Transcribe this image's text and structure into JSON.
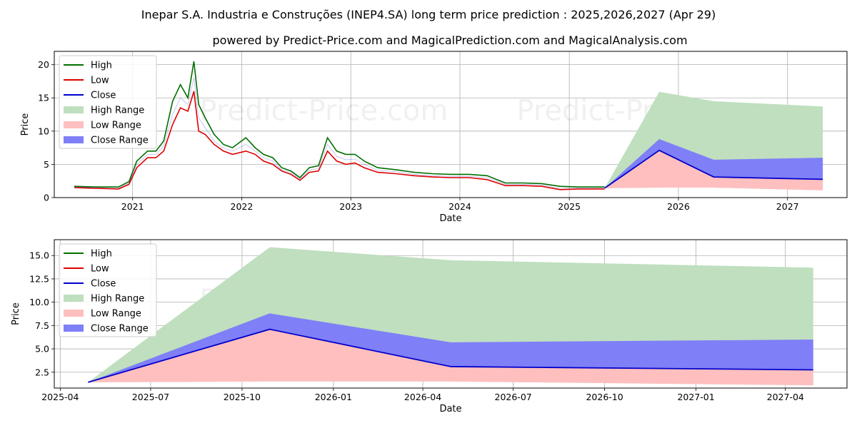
{
  "title": "Inepar S.A. Industria e Construções (INEP4.SA) long term price prediction : 2025,2026,2027 (Apr 29)",
  "subtitle": "powered by Predict-Price.com and MagicalPrediction.com and MagicalAnalysis.com",
  "watermark": "Predict-Price.com",
  "colors": {
    "high": "#007000",
    "low": "#dd0000",
    "close": "#0000cc",
    "high_range": "#bfdfbf",
    "low_range": "#ffbfbf",
    "close_range": "#7f7ff7"
  },
  "legend": {
    "placement": "top-left",
    "entries": [
      "High",
      "Low",
      "Close",
      "High Range",
      "Low Range",
      "Close Range"
    ]
  },
  "chart_data": [
    {
      "type": "line",
      "xlabel": "Date",
      "ylabel": "Price",
      "xlim": [
        "2020-04-14",
        "2027-07-19"
      ],
      "ylim": [
        0,
        22
      ],
      "grid": true,
      "x_ticks": [
        "2021",
        "2022",
        "2023",
        "2024",
        "2025",
        "2026",
        "2027"
      ],
      "x_tick_dates": [
        "2021-01-01",
        "2022-01-01",
        "2023-01-01",
        "2024-01-01",
        "2025-01-01",
        "2026-01-01",
        "2027-01-01"
      ],
      "y_ticks": [
        0,
        5,
        10,
        15,
        20
      ],
      "history": {
        "dates": [
          "2020-06-20",
          "2020-09-01",
          "2020-11-15",
          "2020-12-20",
          "2021-01-15",
          "2021-02-20",
          "2021-03-20",
          "2021-04-15",
          "2021-05-15",
          "2021-06-10",
          "2021-07-05",
          "2021-07-25",
          "2021-08-10",
          "2021-09-01",
          "2021-10-01",
          "2021-11-01",
          "2021-12-01",
          "2022-01-15",
          "2022-02-15",
          "2022-03-15",
          "2022-04-15",
          "2022-05-15",
          "2022-06-15",
          "2022-07-15",
          "2022-08-15",
          "2022-09-15",
          "2022-10-15",
          "2022-11-15",
          "2022-12-15",
          "2023-01-15",
          "2023-02-15",
          "2023-04-01",
          "2023-06-01",
          "2023-08-01",
          "2023-10-01",
          "2023-12-01",
          "2024-02-01",
          "2024-04-01",
          "2024-06-01",
          "2024-08-01",
          "2024-10-01",
          "2024-12-01",
          "2025-02-01",
          "2025-04-29"
        ],
        "high": [
          1.7,
          1.6,
          1.6,
          2.4,
          5.5,
          7.0,
          7.0,
          8.5,
          14.5,
          17.0,
          15.0,
          20.5,
          14.0,
          12.0,
          9.5,
          8.0,
          7.5,
          9.0,
          7.5,
          6.5,
          6.0,
          4.5,
          4.0,
          3.0,
          4.5,
          4.8,
          9.0,
          7.0,
          6.5,
          6.5,
          5.5,
          4.5,
          4.2,
          3.8,
          3.6,
          3.5,
          3.5,
          3.3,
          2.2,
          2.2,
          2.1,
          1.7,
          1.6,
          1.6
        ],
        "low": [
          1.5,
          1.4,
          1.3,
          2.0,
          4.5,
          6.0,
          6.0,
          7.0,
          11.0,
          13.5,
          13.0,
          16.0,
          10.0,
          9.5,
          8.0,
          7.0,
          6.5,
          7.0,
          6.5,
          5.5,
          5.0,
          4.0,
          3.5,
          2.6,
          3.8,
          4.0,
          7.0,
          5.5,
          5.0,
          5.2,
          4.5,
          3.8,
          3.6,
          3.3,
          3.1,
          3.0,
          3.0,
          2.7,
          1.8,
          1.8,
          1.7,
          1.2,
          1.3,
          1.3
        ],
        "close": [
          1.6,
          1.5,
          1.4,
          2.2,
          5.0,
          6.5,
          6.5,
          7.8,
          12.5,
          15.0,
          14.0,
          18.0,
          12.0,
          10.5,
          8.5,
          7.5,
          7.0,
          8.0,
          7.0,
          6.0,
          5.5,
          4.2,
          3.8,
          2.8,
          4.1,
          4.4,
          8.0,
          6.2,
          5.7,
          5.8,
          5.0,
          4.1,
          3.9,
          3.5,
          3.3,
          3.2,
          3.2,
          3.0,
          2.0,
          2.0,
          1.9,
          1.4,
          1.45,
          1.42
        ]
      }
    },
    {
      "type": "area",
      "xlabel": "Date",
      "ylabel": "Price",
      "xlim": [
        "2025-03-26",
        "2027-06-02"
      ],
      "ylim": [
        0.8,
        16.7
      ],
      "grid": true,
      "x_ticks": [
        "2025-04",
        "2025-07",
        "2025-10",
        "2026-01",
        "2026-04",
        "2026-07",
        "2026-10",
        "2027-01",
        "2027-04"
      ],
      "x_tick_dates": [
        "2025-04-01",
        "2025-07-01",
        "2025-10-01",
        "2026-01-01",
        "2026-04-01",
        "2026-07-01",
        "2026-10-01",
        "2027-01-01",
        "2027-04-01"
      ],
      "y_ticks": [
        "2.5",
        "5.0",
        "7.5",
        "10.0",
        "12.5",
        "15.0"
      ],
      "forecast": {
        "dates": [
          "2025-04-29",
          "2025-10-29",
          "2026-04-29",
          "2027-04-29"
        ],
        "close": [
          1.42,
          7.1,
          3.1,
          2.75
        ],
        "close_range_high": [
          1.42,
          8.8,
          5.7,
          6.0
        ],
        "close_range_low": [
          1.42,
          7.1,
          3.1,
          2.75
        ],
        "high_range_high": [
          1.42,
          15.9,
          14.5,
          13.7
        ],
        "high_range_low": [
          1.42,
          1.5,
          1.5,
          1.1
        ],
        "low_range_high": [
          1.42,
          7.1,
          3.1,
          2.75
        ],
        "low_range_low": [
          1.42,
          1.5,
          1.5,
          1.1
        ]
      }
    }
  ]
}
